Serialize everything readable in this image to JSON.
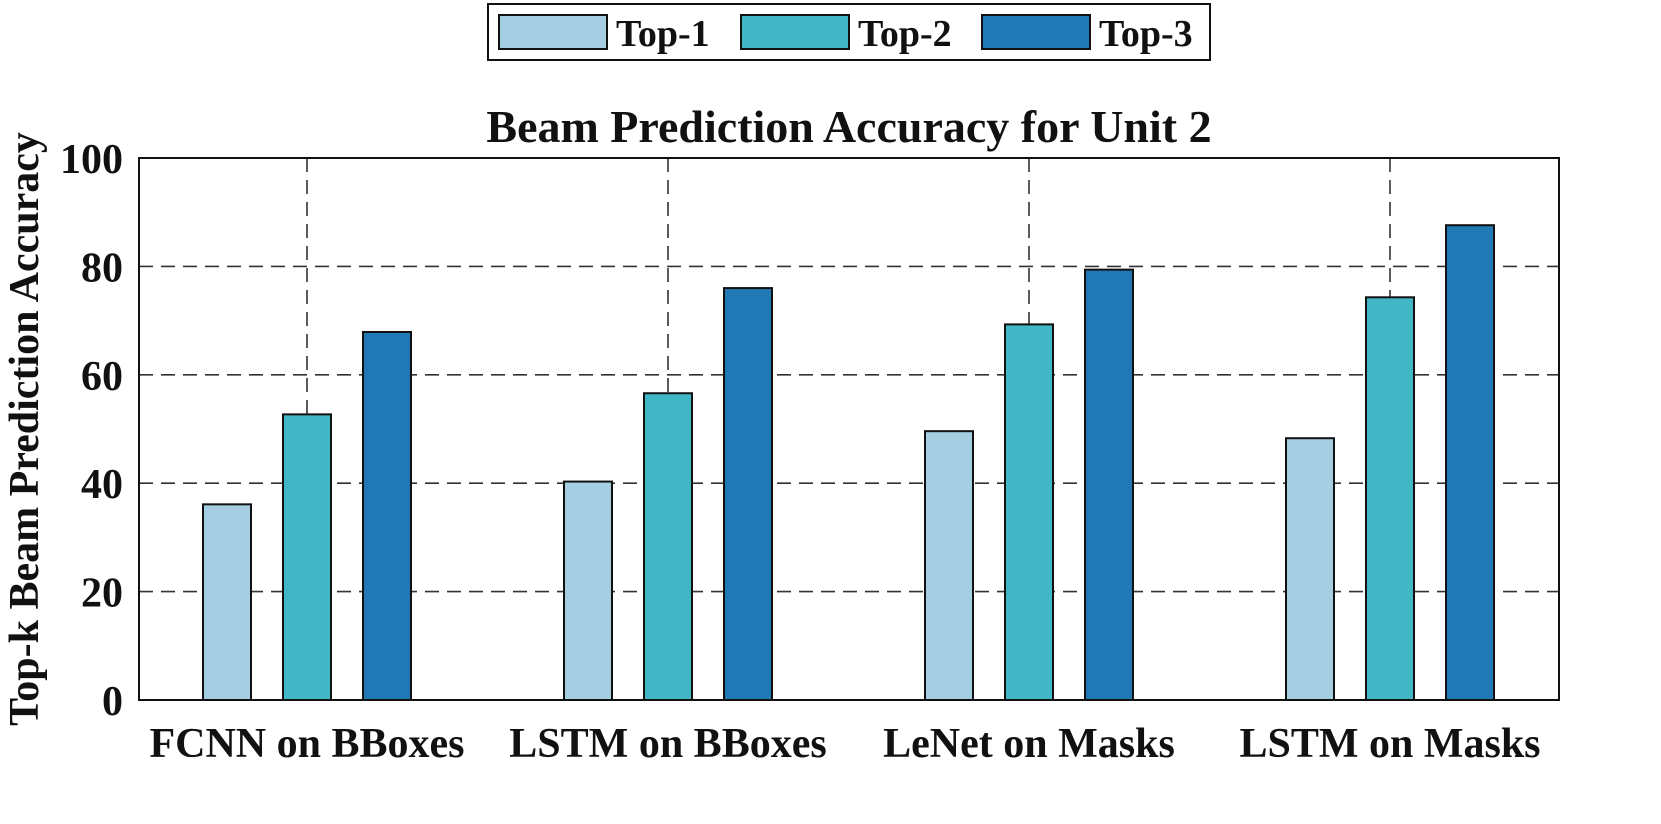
{
  "chart_data": {
    "type": "bar",
    "title": "Beam Prediction Accuracy for Unit 2",
    "xlabel": "",
    "ylabel": "Top-k Beam Prediction Accuracy",
    "ylim": [
      0,
      100
    ],
    "yticks": [
      0,
      20,
      40,
      60,
      80,
      100
    ],
    "grid": true,
    "legend_position": "top-center",
    "categories": [
      "FCNN on BBoxes",
      "LSTM on BBoxes",
      "LeNet on Masks",
      "LSTM on Masks"
    ],
    "series": [
      {
        "name": "Top-1",
        "color": "#a6cee3",
        "values": [
          36.1,
          40.3,
          49.6,
          48.3
        ]
      },
      {
        "name": "Top-2",
        "color": "#41b6c4",
        "values": [
          52.7,
          56.6,
          69.3,
          74.3
        ]
      },
      {
        "name": "Top-3",
        "color": "#2079b4",
        "values": [
          67.9,
          76.0,
          79.4,
          87.6
        ]
      }
    ]
  }
}
